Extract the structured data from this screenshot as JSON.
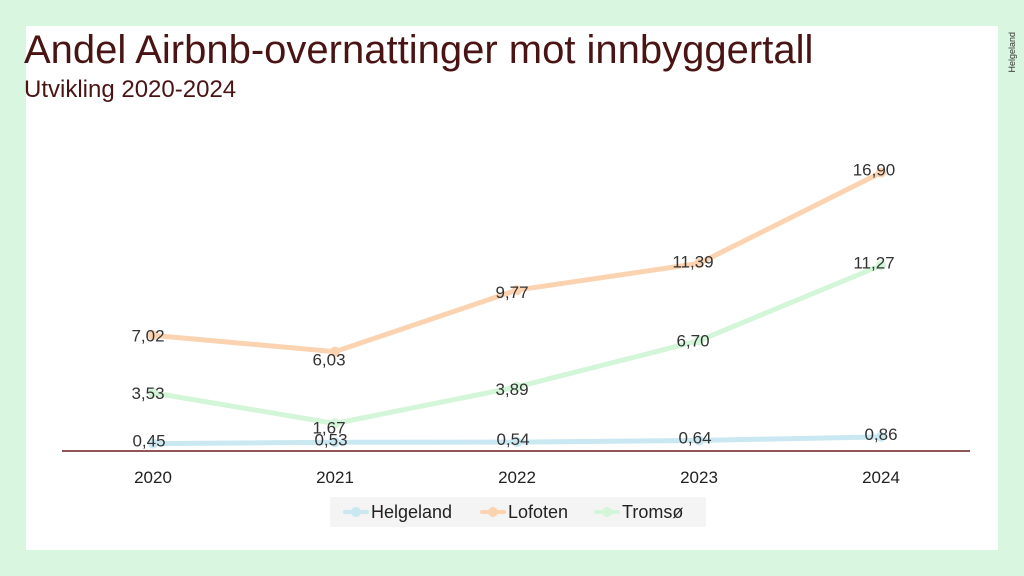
{
  "header": {
    "title": "Andel Airbnb-overnattinger mot innbyggertall",
    "subtitle": "Utvikling 2020-2024"
  },
  "logo": {
    "text": "Helgeland"
  },
  "colors": {
    "background": "#d9f7e0",
    "panel": "#ffffff",
    "title": "#4a1414",
    "axis": "#6b1f1f"
  },
  "chart_data": {
    "type": "line",
    "categories": [
      "2020",
      "2021",
      "2022",
      "2023",
      "2024"
    ],
    "series": [
      {
        "name": "Helgeland",
        "color": "#c9e8f2",
        "values": [
          0.45,
          0.53,
          0.54,
          0.64,
          0.86
        ],
        "labels": [
          "0,45",
          "0,53",
          "0,54",
          "0,64",
          "0,86"
        ]
      },
      {
        "name": "Lofoten",
        "color": "#fbd3b0",
        "values": [
          7.02,
          6.03,
          9.77,
          11.39,
          16.9
        ],
        "labels": [
          "7,02",
          "6,03",
          "9,77",
          "11,39",
          "16,90"
        ]
      },
      {
        "name": "Tromsø",
        "color": "#d3f5d8",
        "values": [
          3.53,
          1.67,
          3.89,
          6.7,
          11.27
        ],
        "labels": [
          "3,53",
          "1,67",
          "3,89",
          "6,70",
          "11,27"
        ]
      }
    ],
    "ylim": [
      0,
      17
    ],
    "grid": false,
    "legend": "bottom"
  }
}
